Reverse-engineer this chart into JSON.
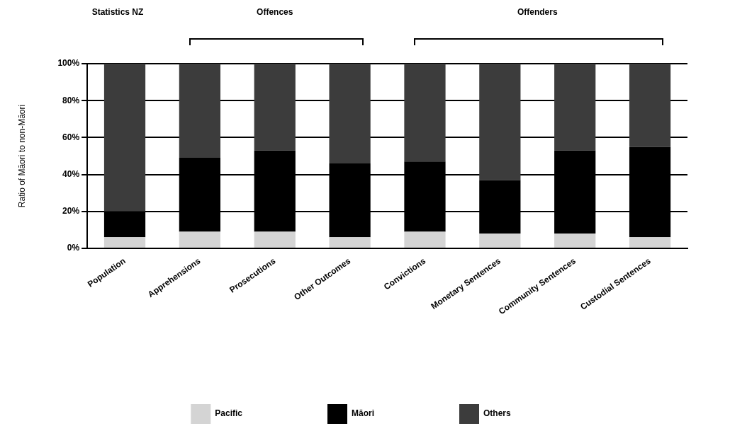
{
  "chart_data": {
    "type": "bar",
    "stacked": true,
    "ylabel": "Ratio of Māori to non-Māori",
    "annotations": [
      "Statistics NZ",
      "Offences",
      "Offenders"
    ],
    "categories": [
      "Population",
      "Apprehensions",
      "Prosecutions",
      "Other Outcomes",
      "Convictions",
      "Monetary Sentences",
      "Community Sentences",
      "Custodial Sentences"
    ],
    "series": [
      {
        "name": "Pacific",
        "color": "#d4d4d4",
        "values": [
          6,
          9,
          9,
          6,
          9,
          8,
          8,
          6
        ]
      },
      {
        "name": "Māori",
        "color": "#000000",
        "values": [
          14,
          40,
          44,
          40,
          38,
          29,
          45,
          49
        ]
      },
      {
        "name": "Others",
        "color": "#3c3c3c",
        "values": [
          80,
          51,
          47,
          54,
          53,
          63,
          47,
          45
        ]
      }
    ],
    "ylim": [
      0,
      100
    ],
    "yticks": [
      {
        "value": 0,
        "label": "0%"
      },
      {
        "value": 20,
        "label": "20%"
      },
      {
        "value": 40,
        "label": "40%"
      },
      {
        "value": 60,
        "label": "60%"
      },
      {
        "value": 80,
        "label": "80%"
      },
      {
        "value": 100,
        "label": "100%"
      }
    ],
    "grid": "y",
    "legend": "bottom"
  }
}
